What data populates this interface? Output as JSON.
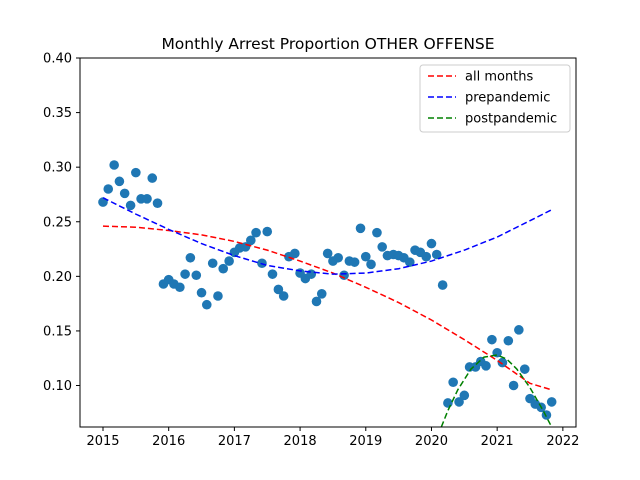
{
  "chart_data": {
    "type": "scatter",
    "title": "Monthly Arrest Proportion OTHER OFFENSE",
    "xlabel": "",
    "ylabel": "",
    "xlim": [
      2014.65,
      2022.2
    ],
    "ylim": [
      0.062,
      0.4
    ],
    "x_ticks": [
      2015,
      2016,
      2017,
      2018,
      2019,
      2020,
      2021,
      2022
    ],
    "x_tick_labels": [
      "2015",
      "2016",
      "2017",
      "2018",
      "2019",
      "2020",
      "2021",
      "2022"
    ],
    "y_ticks": [
      0.1,
      0.15,
      0.2,
      0.25,
      0.3,
      0.35,
      0.4
    ],
    "y_tick_labels": [
      "0.10",
      "0.15",
      "0.20",
      "0.25",
      "0.30",
      "0.35",
      "0.40"
    ],
    "grid": false,
    "legend_position": "top-right",
    "point_color": "#1f77b4",
    "points": [
      {
        "x": 2015.0,
        "y": 0.268
      },
      {
        "x": 2015.08,
        "y": 0.28
      },
      {
        "x": 2015.17,
        "y": 0.302
      },
      {
        "x": 2015.25,
        "y": 0.287
      },
      {
        "x": 2015.33,
        "y": 0.276
      },
      {
        "x": 2015.42,
        "y": 0.265
      },
      {
        "x": 2015.5,
        "y": 0.295
      },
      {
        "x": 2015.58,
        "y": 0.271
      },
      {
        "x": 2015.67,
        "y": 0.271
      },
      {
        "x": 2015.75,
        "y": 0.29
      },
      {
        "x": 2015.83,
        "y": 0.267
      },
      {
        "x": 2015.92,
        "y": 0.193
      },
      {
        "x": 2016.0,
        "y": 0.197
      },
      {
        "x": 2016.08,
        "y": 0.193
      },
      {
        "x": 2016.17,
        "y": 0.19
      },
      {
        "x": 2016.25,
        "y": 0.202
      },
      {
        "x": 2016.33,
        "y": 0.217
      },
      {
        "x": 2016.42,
        "y": 0.201
      },
      {
        "x": 2016.5,
        "y": 0.185
      },
      {
        "x": 2016.58,
        "y": 0.174
      },
      {
        "x": 2016.67,
        "y": 0.212
      },
      {
        "x": 2016.75,
        "y": 0.182
      },
      {
        "x": 2016.83,
        "y": 0.207
      },
      {
        "x": 2016.92,
        "y": 0.214
      },
      {
        "x": 2017.0,
        "y": 0.222
      },
      {
        "x": 2017.08,
        "y": 0.226
      },
      {
        "x": 2017.17,
        "y": 0.227
      },
      {
        "x": 2017.25,
        "y": 0.233
      },
      {
        "x": 2017.33,
        "y": 0.24
      },
      {
        "x": 2017.42,
        "y": 0.212
      },
      {
        "x": 2017.5,
        "y": 0.241
      },
      {
        "x": 2017.58,
        "y": 0.202
      },
      {
        "x": 2017.67,
        "y": 0.188
      },
      {
        "x": 2017.75,
        "y": 0.182
      },
      {
        "x": 2017.83,
        "y": 0.218
      },
      {
        "x": 2017.92,
        "y": 0.221
      },
      {
        "x": 2018.0,
        "y": 0.203
      },
      {
        "x": 2018.08,
        "y": 0.198
      },
      {
        "x": 2018.17,
        "y": 0.202
      },
      {
        "x": 2018.25,
        "y": 0.177
      },
      {
        "x": 2018.33,
        "y": 0.184
      },
      {
        "x": 2018.42,
        "y": 0.221
      },
      {
        "x": 2018.5,
        "y": 0.214
      },
      {
        "x": 2018.58,
        "y": 0.217
      },
      {
        "x": 2018.67,
        "y": 0.201
      },
      {
        "x": 2018.75,
        "y": 0.214
      },
      {
        "x": 2018.83,
        "y": 0.213
      },
      {
        "x": 2018.92,
        "y": 0.244
      },
      {
        "x": 2019.0,
        "y": 0.218
      },
      {
        "x": 2019.08,
        "y": 0.211
      },
      {
        "x": 2019.17,
        "y": 0.24
      },
      {
        "x": 2019.25,
        "y": 0.227
      },
      {
        "x": 2019.33,
        "y": 0.219
      },
      {
        "x": 2019.42,
        "y": 0.22
      },
      {
        "x": 2019.5,
        "y": 0.219
      },
      {
        "x": 2019.58,
        "y": 0.217
      },
      {
        "x": 2019.67,
        "y": 0.213
      },
      {
        "x": 2019.75,
        "y": 0.224
      },
      {
        "x": 2019.83,
        "y": 0.222
      },
      {
        "x": 2019.92,
        "y": 0.218
      },
      {
        "x": 2020.0,
        "y": 0.23
      },
      {
        "x": 2020.08,
        "y": 0.22
      },
      {
        "x": 2020.17,
        "y": 0.192
      },
      {
        "x": 2020.25,
        "y": 0.084
      },
      {
        "x": 2020.33,
        "y": 0.103
      },
      {
        "x": 2020.42,
        "y": 0.085
      },
      {
        "x": 2020.5,
        "y": 0.091
      },
      {
        "x": 2020.58,
        "y": 0.117
      },
      {
        "x": 2020.67,
        "y": 0.117
      },
      {
        "x": 2020.75,
        "y": 0.122
      },
      {
        "x": 2020.83,
        "y": 0.118
      },
      {
        "x": 2020.92,
        "y": 0.142
      },
      {
        "x": 2021.0,
        "y": 0.13
      },
      {
        "x": 2021.08,
        "y": 0.121
      },
      {
        "x": 2021.17,
        "y": 0.141
      },
      {
        "x": 2021.25,
        "y": 0.1
      },
      {
        "x": 2021.33,
        "y": 0.151
      },
      {
        "x": 2021.42,
        "y": 0.115
      },
      {
        "x": 2021.5,
        "y": 0.088
      },
      {
        "x": 2021.58,
        "y": 0.083
      },
      {
        "x": 2021.67,
        "y": 0.08
      },
      {
        "x": 2021.75,
        "y": 0.073
      },
      {
        "x": 2021.83,
        "y": 0.085
      }
    ],
    "series": [
      {
        "name": "all months",
        "color": "#ff0000",
        "style": "dashed",
        "x": [
          2015.0,
          2015.5,
          2016.0,
          2016.5,
          2017.0,
          2017.5,
          2018.0,
          2018.5,
          2019.0,
          2019.5,
          2020.0,
          2020.5,
          2021.0,
          2021.5,
          2021.83
        ],
        "y": [
          0.246,
          0.245,
          0.242,
          0.238,
          0.232,
          0.224,
          0.214,
          0.203,
          0.19,
          0.176,
          0.16,
          0.142,
          0.123,
          0.102,
          0.096
        ]
      },
      {
        "name": "prepandemic",
        "color": "#0000ff",
        "style": "dashed",
        "x": [
          2015.0,
          2015.5,
          2016.0,
          2016.5,
          2017.0,
          2017.5,
          2018.0,
          2018.5,
          2019.0,
          2019.5,
          2020.0,
          2020.5,
          2021.0,
          2021.5,
          2021.83
        ],
        "y": [
          0.272,
          0.257,
          0.243,
          0.23,
          0.219,
          0.21,
          0.205,
          0.202,
          0.203,
          0.207,
          0.214,
          0.224,
          0.236,
          0.251,
          0.261
        ]
      },
      {
        "name": "postpandemic",
        "color": "#008000",
        "style": "dashed",
        "x": [
          2020.15,
          2020.25,
          2020.4,
          2020.6,
          2020.8,
          2021.0,
          2021.15,
          2021.3,
          2021.5,
          2021.7,
          2021.83
        ],
        "y": [
          0.062,
          0.077,
          0.096,
          0.115,
          0.126,
          0.128,
          0.124,
          0.115,
          0.098,
          0.077,
          0.062
        ]
      }
    ]
  }
}
